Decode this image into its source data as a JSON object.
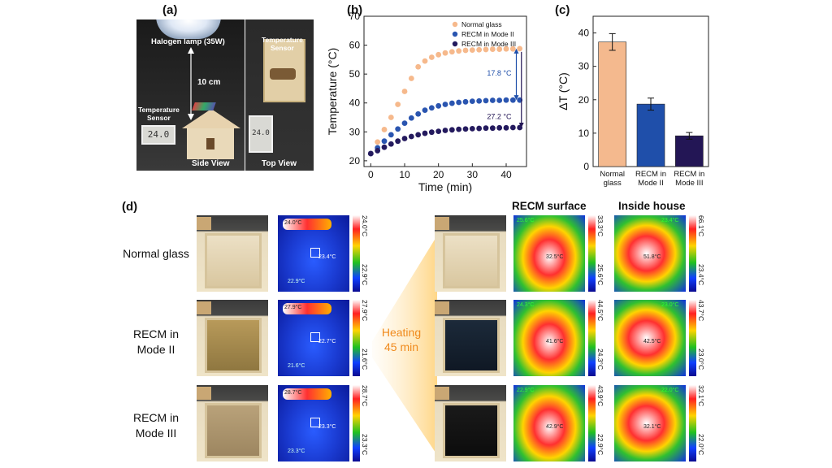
{
  "panel_labels": {
    "a": "(a)",
    "b": "(b)",
    "c": "(c)",
    "d": "(d)"
  },
  "panel_a": {
    "lamp_label": "Halogen lamp (35W)",
    "distance_label": "10 cm",
    "sensor_label_left": "Temperature\nSensor",
    "sensor_label_top": "Temperature\nSensor",
    "side_view": "Side View",
    "top_view": "Top View",
    "display_left": "24.0",
    "display_top": "24.0"
  },
  "panel_d": {
    "rows": [
      {
        "label": "Normal glass",
        "hot_spot": "24.0°C",
        "cross": "23.4°C",
        "low_spot": "22.9°C",
        "cbar_max": "24.0°C",
        "cbar_min": "22.9°C"
      },
      {
        "label": "RECM in\nMode II",
        "hot_spot": "27.9°C",
        "cross": "22.7°C",
        "low_spot": "21.6°C",
        "cbar_max": "27.9°C",
        "cbar_min": "21.6°C"
      },
      {
        "label": "RECM in\nMode III",
        "hot_spot": "28.7°C",
        "cross": "23.3°C",
        "low_spot": "23.3°C",
        "cbar_max": "28.7°C",
        "cbar_min": "23.3°C"
      }
    ],
    "heating_label": "Heating\n45 min",
    "surface_header": "RECM surface",
    "inside_header": "Inside house",
    "surface": [
      {
        "cbar_max": "33.3°C",
        "cbar_min": "25.6°C",
        "tag": "25.6°C",
        "spot": "32.5°C"
      },
      {
        "cbar_max": "44.5°C",
        "cbar_min": "24.3°C",
        "tag": "24.3°C",
        "spot": "41.6°C"
      },
      {
        "cbar_max": "43.9°C",
        "cbar_min": "22.9°C",
        "tag": "22.9°C",
        "spot": "42.9°C"
      }
    ],
    "inside": [
      {
        "cbar_max": "66.1°C",
        "cbar_min": "23.4°C",
        "tag": "23.4°C",
        "spot": "51.8°C"
      },
      {
        "cbar_max": "43.7°C",
        "cbar_min": "23.0°C",
        "tag": "23.0°C",
        "spot": "42.5°C"
      },
      {
        "cbar_max": "32.1°C",
        "cbar_min": "22.0°C",
        "tag": "22.0°C",
        "spot": "32.1°C"
      }
    ]
  },
  "chart_data": [
    {
      "type": "scatter",
      "title": "",
      "xlabel": "Time (min)",
      "ylabel": "Temperature (°C)",
      "xlim": [
        -2,
        46
      ],
      "ylim": [
        18,
        70
      ],
      "xticks": [
        0,
        10,
        20,
        30,
        40
      ],
      "yticks": [
        20,
        30,
        40,
        50,
        60,
        70
      ],
      "legend_position": "top-right",
      "x": [
        0,
        2,
        4,
        6,
        8,
        10,
        12,
        14,
        16,
        18,
        20,
        22,
        24,
        26,
        28,
        30,
        32,
        34,
        36,
        38,
        40,
        42,
        44
      ],
      "series": [
        {
          "name": "Normal glass",
          "color": "#f6b98c",
          "values": [
            22.5,
            26.5,
            30.8,
            35,
            39.5,
            44,
            48.5,
            52.5,
            54.5,
            55.8,
            56.7,
            57.3,
            57.7,
            58,
            58.2,
            58.3,
            58.4,
            58.5,
            58.6,
            58.6,
            58.7,
            58.7,
            58.8
          ]
        },
        {
          "name": "RECM in Mode II",
          "color": "#2a55b0",
          "values": [
            22.5,
            24.5,
            26.8,
            29,
            31,
            33,
            34.8,
            36.2,
            37.5,
            38.3,
            39,
            39.5,
            39.9,
            40.2,
            40.4,
            40.6,
            40.7,
            40.8,
            40.9,
            40.9,
            41,
            41,
            41
          ]
        },
        {
          "name": "RECM in Mode III",
          "color": "#241a5e",
          "values": [
            22.5,
            23.5,
            24.7,
            25.8,
            26.8,
            27.7,
            28.4,
            29,
            29.5,
            29.9,
            30.2,
            30.5,
            30.7,
            30.9,
            31,
            31.1,
            31.2,
            31.3,
            31.3,
            31.4,
            31.4,
            31.5,
            31.5
          ]
        }
      ],
      "annotations": [
        "17.8 °C",
        "27.2 °C"
      ]
    },
    {
      "type": "bar",
      "title": "",
      "xlabel": "",
      "ylabel": "ΔT (°C)",
      "ylim": [
        0,
        45
      ],
      "yticks": [
        0,
        10,
        20,
        30,
        40
      ],
      "categories": [
        "Normal\nglass",
        "RECM in\nMode II",
        "RECM in\nMode III"
      ],
      "values": [
        37.3,
        18.7,
        9.2
      ],
      "errors": [
        2.5,
        1.8,
        1.0
      ],
      "colors": [
        "#f4b98e",
        "#1f4faa",
        "#231655"
      ]
    }
  ]
}
